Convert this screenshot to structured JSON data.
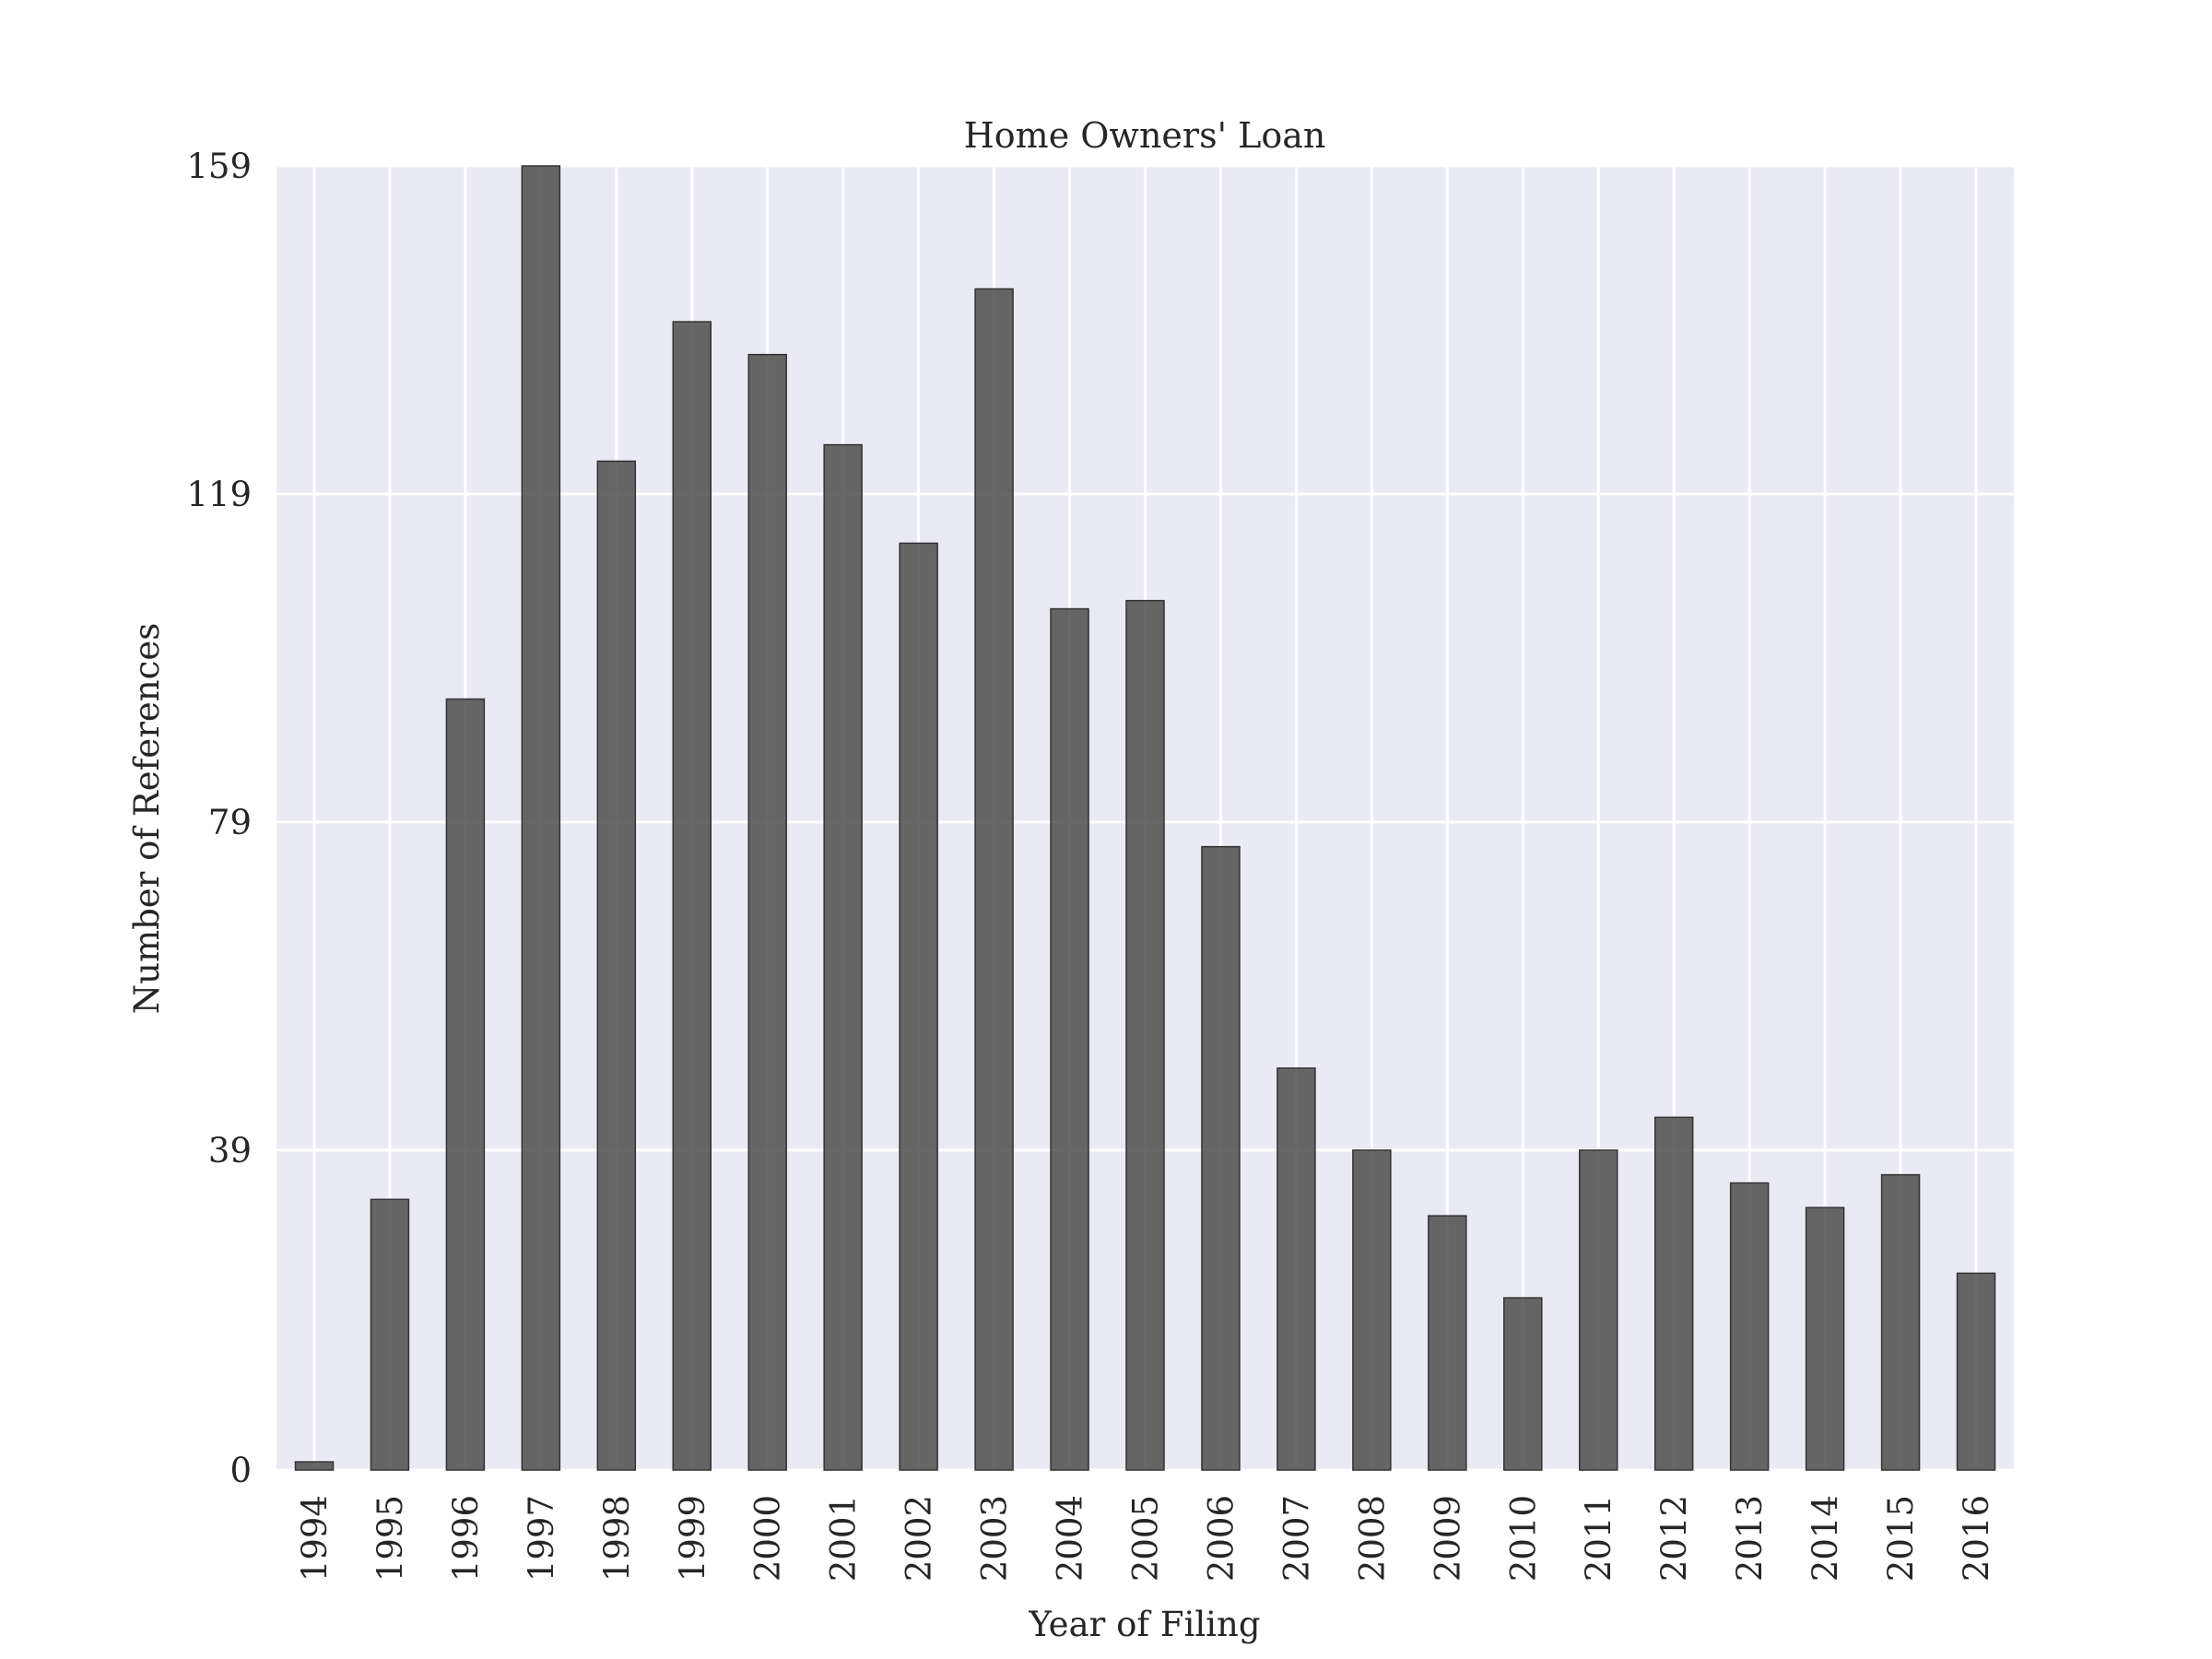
{
  "chart_data": {
    "type": "bar",
    "title": "Home Owners' Loan",
    "xlabel": "Year of Filing",
    "ylabel": "Number of References",
    "categories": [
      "1994",
      "1995",
      "1996",
      "1997",
      "1998",
      "1999",
      "2000",
      "2001",
      "2002",
      "2003",
      "2004",
      "2005",
      "2006",
      "2007",
      "2008",
      "2009",
      "2010",
      "2011",
      "2012",
      "2013",
      "2014",
      "2015",
      "2016"
    ],
    "values": [
      1,
      33,
      94,
      159,
      123,
      140,
      136,
      125,
      113,
      144,
      105,
      106,
      76,
      49,
      39,
      31,
      21,
      39,
      43,
      35,
      32,
      36,
      24
    ],
    "yticks": [
      "0",
      "39",
      "79",
      "119",
      "159"
    ],
    "ylim": [
      0,
      159
    ],
    "grid": true,
    "colors": {
      "bar": "#4d4d4d",
      "plot_background": "#eaeaf2",
      "grid": "#ffffff"
    }
  }
}
